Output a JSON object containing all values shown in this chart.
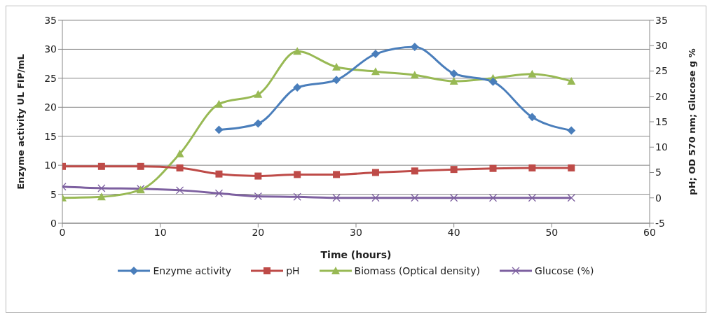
{
  "chart_data": {
    "type": "line",
    "xlabel": "Time (hours)",
    "ylabel": "Enzyme activity  UL FIP/mL",
    "y2label": "pH; OD 570 nm; Glucose g %",
    "x": [
      0,
      4,
      8,
      12,
      16,
      20,
      24,
      28,
      32,
      36,
      40,
      44,
      48,
      52
    ],
    "xlim": [
      0,
      60
    ],
    "xticks": [
      0,
      10,
      20,
      30,
      40,
      50,
      60
    ],
    "ylim": [
      0,
      35
    ],
    "yticks": [
      0,
      5,
      10,
      15,
      20,
      25,
      30,
      35
    ],
    "y2lim": [
      -5,
      35
    ],
    "y2ticks": [
      -5,
      0,
      5,
      10,
      15,
      20,
      25,
      30,
      35
    ],
    "grid": "y",
    "legend": "bottom",
    "series": [
      {
        "name": "Enzyme activity",
        "color": "#4a7ebb",
        "marker": "diamond",
        "values": [
          null,
          null,
          null,
          null,
          16.1,
          17.2,
          23.4,
          24.7,
          29.2,
          30.4,
          25.8,
          24.4,
          18.3,
          16.0
        ]
      },
      {
        "name": "pH",
        "color": "#be4b48",
        "marker": "square",
        "axis": "y2",
        "values": [
          6.2,
          6.2,
          6.2,
          5.9,
          4.7,
          4.3,
          4.6,
          4.6,
          5.0,
          5.3,
          5.6,
          5.8,
          5.9,
          5.9
        ]
      },
      {
        "name": "Biomass (Optical density)",
        "color": "#98b954",
        "marker": "triangle",
        "axis": "y2",
        "values": [
          0,
          0.2,
          1.6,
          8.7,
          18.5,
          20.4,
          28.9,
          25.8,
          24.9,
          24.2,
          23.0,
          23.6,
          24.4,
          23.0
        ]
      },
      {
        "name": "Glucose (%)",
        "color": "#7d60a0",
        "marker": "cross",
        "axis": "y2",
        "values": [
          2.2,
          1.9,
          1.8,
          1.5,
          0.9,
          0.3,
          0.2,
          0,
          0,
          0,
          0,
          0,
          0,
          0
        ]
      }
    ]
  }
}
